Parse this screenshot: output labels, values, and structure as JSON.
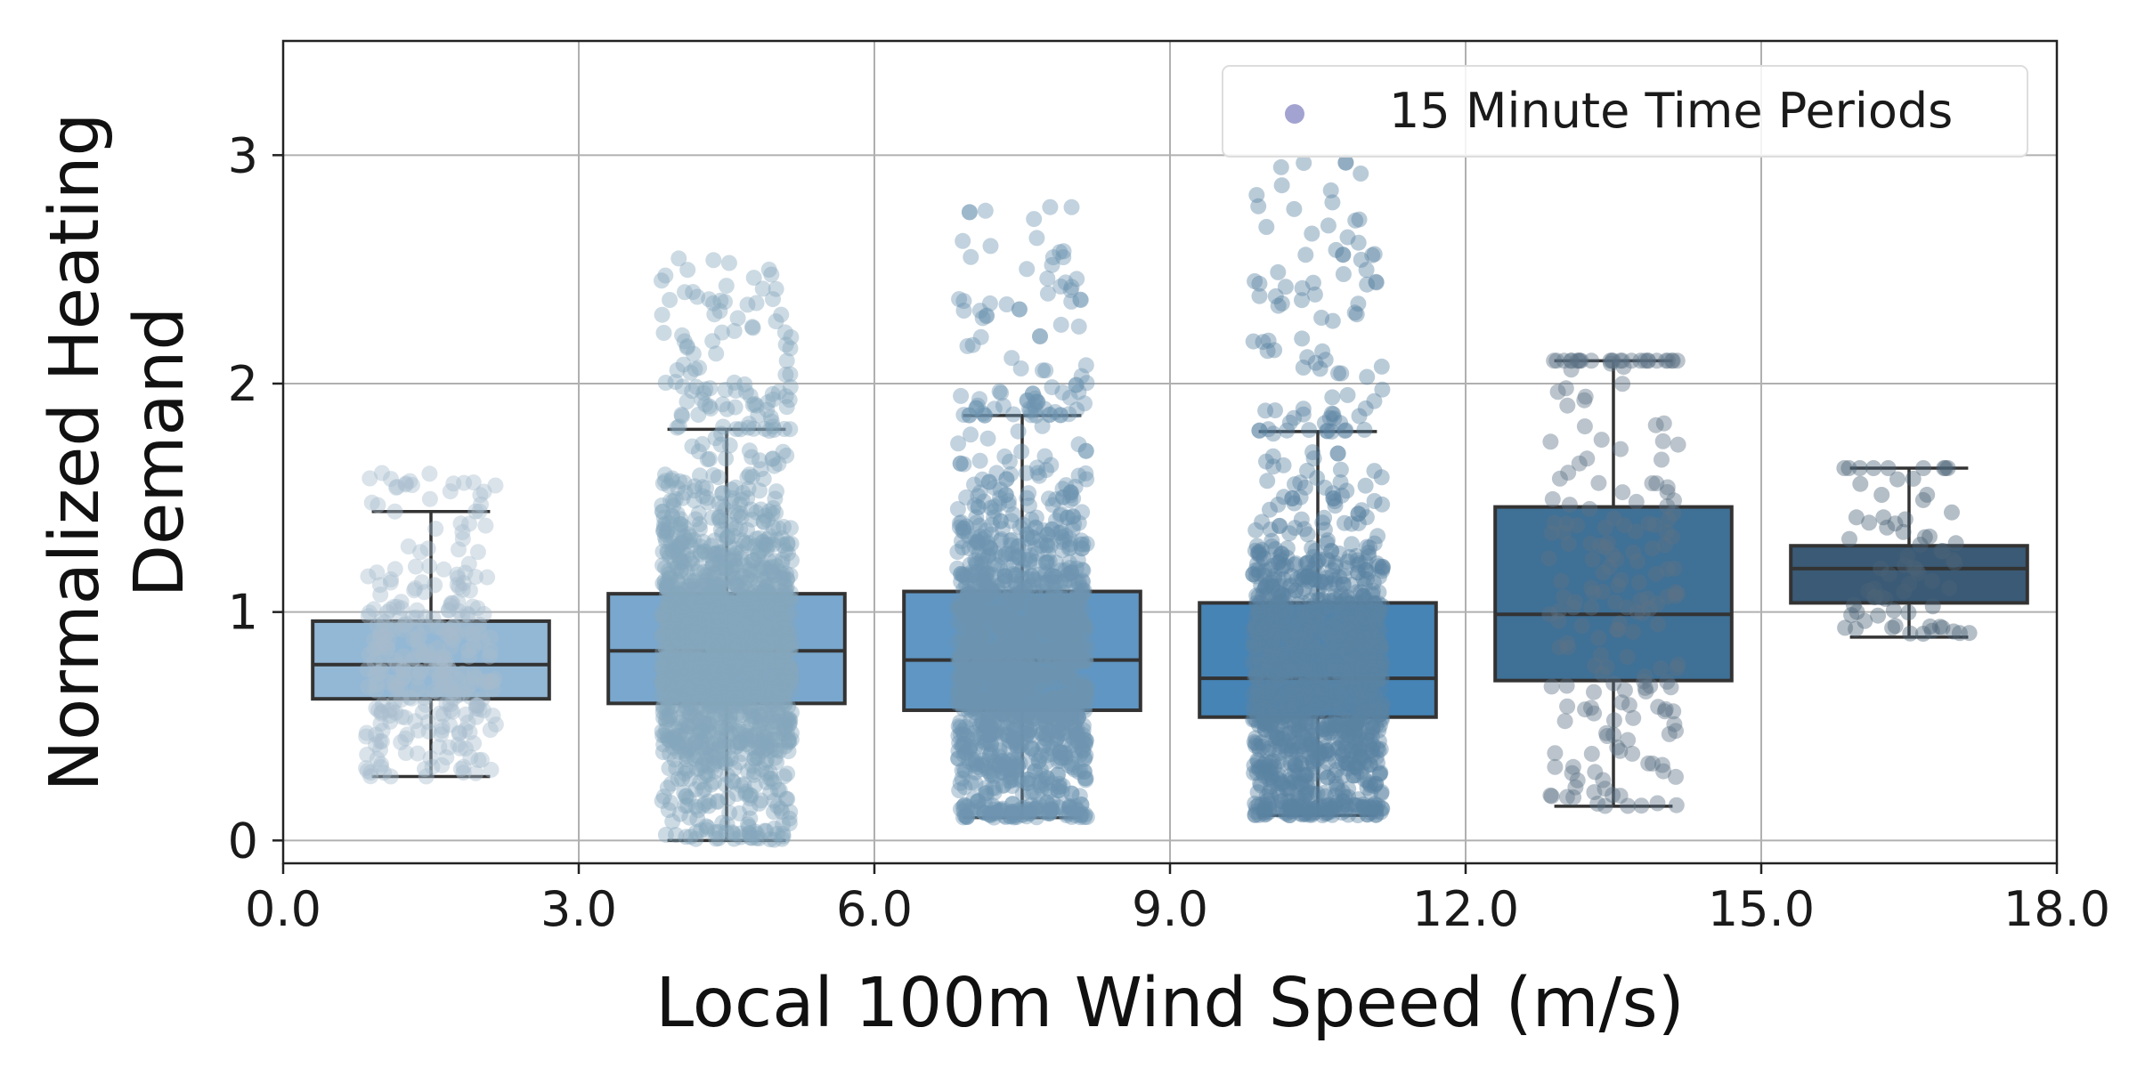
{
  "chart_data": {
    "type": "box",
    "xlabel": "Local 100m Wind Speed (m/s)",
    "ylabel": "Normalized Heating Demand",
    "xlim": [
      0,
      18
    ],
    "ylim": [
      -0.1,
      3.5
    ],
    "xticks": [
      "0.0",
      "3.0",
      "6.0",
      "9.0",
      "12.0",
      "15.0",
      "18.0"
    ],
    "yticks": [
      "0",
      "1",
      "2",
      "3"
    ],
    "grid": true,
    "legend": {
      "placement": "top-right",
      "entries": [
        "15 Minute Time Periods"
      ],
      "marker_color": "#9999cc"
    },
    "boxes": [
      {
        "x_range": [
          0,
          3
        ],
        "whisker_low": 0.28,
        "q1": 0.62,
        "median": 0.77,
        "q3": 0.96,
        "whisker_high": 1.44,
        "fill": "#93b8d6",
        "points": 300,
        "points_color": "#a6bccc",
        "y_max_point": 1.62
      },
      {
        "x_range": [
          3,
          6
        ],
        "whisker_low": 0.0,
        "q1": 0.6,
        "median": 0.83,
        "q3": 1.08,
        "whisker_high": 1.8,
        "fill": "#79a7cd",
        "points": 1600,
        "points_color": "#86a6bd",
        "y_max_point": 2.58
      },
      {
        "x_range": [
          6,
          9
        ],
        "whisker_low": 0.1,
        "q1": 0.57,
        "median": 0.79,
        "q3": 1.09,
        "whisker_high": 1.86,
        "fill": "#5f96c3",
        "points": 1600,
        "points_color": "#6e93b0",
        "y_max_point": 2.79
      },
      {
        "x_range": [
          9,
          12
        ],
        "whisker_low": 0.11,
        "q1": 0.54,
        "median": 0.71,
        "q3": 1.04,
        "whisker_high": 1.79,
        "fill": "#4684b6",
        "points": 1400,
        "points_color": "#5a82a2",
        "y_max_point": 2.99
      },
      {
        "x_range": [
          12,
          15
        ],
        "whisker_low": 0.15,
        "q1": 0.7,
        "median": 0.99,
        "q3": 1.46,
        "whisker_high": 2.1,
        "fill": "#3f7096",
        "points": 200,
        "points_color": "#5d7386",
        "y_max_point": 2.1
      },
      {
        "x_range": [
          15,
          18
        ],
        "whisker_low": 0.89,
        "q1": 1.04,
        "median": 1.19,
        "q3": 1.29,
        "whisker_high": 1.63,
        "fill": "#3a5a76",
        "points": 70,
        "points_color": "#4d6378",
        "y_max_point": 1.63
      }
    ]
  }
}
